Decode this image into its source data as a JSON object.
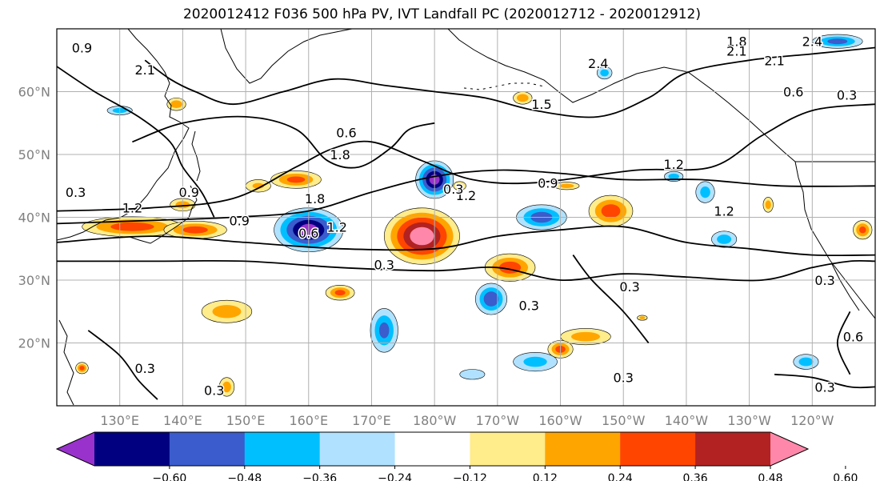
{
  "title": "2020012412 F036 500 hPa PV, IVT Landfall PC (2020012712 - 2020012912)",
  "map": {
    "lon_range": [
      120,
      250
    ],
    "lat_range": [
      10,
      70
    ],
    "lat_labels": [
      {
        "lat": 60,
        "label": "60°N"
      },
      {
        "lat": 50,
        "label": "50°N"
      },
      {
        "lat": 40,
        "label": "40°N"
      },
      {
        "lat": 30,
        "label": "30°N"
      },
      {
        "lat": 20,
        "label": "20°N"
      }
    ],
    "lon_labels": [
      {
        "lon": 130,
        "label": "130°E"
      },
      {
        "lon": 140,
        "label": "140°E"
      },
      {
        "lon": 150,
        "label": "150°E"
      },
      {
        "lon": 160,
        "label": "160°E"
      },
      {
        "lon": 170,
        "label": "170°E"
      },
      {
        "lon": 180,
        "label": "180°W"
      },
      {
        "lon": 190,
        "label": "170°W"
      },
      {
        "lon": 200,
        "label": "160°W"
      },
      {
        "lon": 210,
        "label": "150°W"
      },
      {
        "lon": 220,
        "label": "140°W"
      },
      {
        "lon": 230,
        "label": "130°W"
      },
      {
        "lon": 240,
        "label": "120°W"
      }
    ],
    "grid": true
  },
  "chart_data": {
    "type": "heatmap",
    "filled_field": "IVT Landfall PC",
    "contour_field": "500 hPa PV",
    "colorbar": {
      "orientation": "horizontal",
      "extend": "both",
      "ticks": [
        {
          "value": -0.6,
          "label": "−0.60"
        },
        {
          "value": -0.48,
          "label": "−0.48"
        },
        {
          "value": -0.36,
          "label": "−0.36"
        },
        {
          "value": -0.24,
          "label": "−0.24"
        },
        {
          "value": -0.12,
          "label": "−0.12"
        },
        {
          "value": 0.12,
          "label": "0.12"
        },
        {
          "value": 0.24,
          "label": "0.24"
        },
        {
          "value": 0.36,
          "label": "0.36"
        },
        {
          "value": 0.48,
          "label": "0.48"
        },
        {
          "value": 0.6,
          "label": "0.60"
        }
      ],
      "bins": [
        {
          "min": null,
          "max": -0.6,
          "color": "#9932cc"
        },
        {
          "min": -0.6,
          "max": -0.48,
          "color": "#000080"
        },
        {
          "min": -0.48,
          "max": -0.36,
          "color": "#3a5ccc"
        },
        {
          "min": -0.36,
          "max": -0.24,
          "color": "#00bfff"
        },
        {
          "min": -0.24,
          "max": -0.12,
          "color": "#b0e2ff"
        },
        {
          "min": -0.12,
          "max": 0.12,
          "color": "#ffffff"
        },
        {
          "min": 0.12,
          "max": 0.24,
          "color": "#ffec8b"
        },
        {
          "min": 0.24,
          "max": 0.36,
          "color": "#ffa500"
        },
        {
          "min": 0.36,
          "max": 0.48,
          "color": "#ff4500"
        },
        {
          "min": 0.48,
          "max": 0.6,
          "color": "#b22222"
        },
        {
          "min": 0.6,
          "max": null,
          "color": "#ff88aa"
        }
      ]
    },
    "anomalies": [
      {
        "lon": 132,
        "lat": 38.5,
        "rx": 8,
        "ry": 1.6,
        "value": 0.42
      },
      {
        "lon": 142,
        "lat": 38,
        "rx": 5,
        "ry": 1.4,
        "value": 0.4
      },
      {
        "lon": 160,
        "lat": 38,
        "rx": 5.5,
        "ry": 3.5,
        "value": -0.62
      },
      {
        "lon": 178,
        "lat": 37,
        "rx": 6,
        "ry": 4.5,
        "value": 0.66
      },
      {
        "lon": 180,
        "lat": 46,
        "rx": 3,
        "ry": 3,
        "value": -0.62
      },
      {
        "lon": 197,
        "lat": 40,
        "rx": 4,
        "ry": 2,
        "value": -0.42
      },
      {
        "lon": 208,
        "lat": 41,
        "rx": 3.5,
        "ry": 2.5,
        "value": 0.42
      },
      {
        "lon": 192,
        "lat": 32,
        "rx": 4,
        "ry": 2.2,
        "value": 0.42
      },
      {
        "lon": 189,
        "lat": 27,
        "rx": 2.5,
        "ry": 2.5,
        "value": -0.45
      },
      {
        "lon": 172,
        "lat": 22,
        "rx": 2.2,
        "ry": 3.5,
        "value": -0.38
      },
      {
        "lon": 147,
        "lat": 25,
        "rx": 4,
        "ry": 1.8,
        "value": 0.3
      },
      {
        "lon": 158,
        "lat": 46,
        "rx": 4,
        "ry": 1.4,
        "value": 0.38
      },
      {
        "lon": 196,
        "lat": 17,
        "rx": 3.5,
        "ry": 1.5,
        "value": -0.28
      },
      {
        "lon": 204,
        "lat": 21,
        "rx": 4,
        "ry": 1.3,
        "value": 0.3
      },
      {
        "lon": 200,
        "lat": 19,
        "rx": 2,
        "ry": 1.4,
        "value": 0.4
      },
      {
        "lon": 165,
        "lat": 28,
        "rx": 2.3,
        "ry": 1.2,
        "value": 0.38
      },
      {
        "lon": 226,
        "lat": 36.5,
        "rx": 2,
        "ry": 1.3,
        "value": -0.3
      },
      {
        "lon": 223,
        "lat": 44,
        "rx": 1.5,
        "ry": 1.7,
        "value": -0.28
      },
      {
        "lon": 186,
        "lat": 15,
        "rx": 2,
        "ry": 0.8,
        "value": -0.22
      },
      {
        "lon": 239,
        "lat": 17,
        "rx": 2,
        "ry": 1.2,
        "value": -0.3
      },
      {
        "lon": 130,
        "lat": 57,
        "rx": 2,
        "ry": 0.7,
        "value": -0.3
      },
      {
        "lon": 139,
        "lat": 58,
        "rx": 1.5,
        "ry": 1,
        "value": 0.33
      },
      {
        "lon": 194,
        "lat": 59,
        "rx": 1.5,
        "ry": 1,
        "value": 0.33
      },
      {
        "lon": 207,
        "lat": 63,
        "rx": 1.2,
        "ry": 1,
        "value": -0.3
      },
      {
        "lon": 244,
        "lat": 68,
        "rx": 4,
        "ry": 1.1,
        "value": -0.4
      },
      {
        "lon": 152,
        "lat": 45,
        "rx": 2,
        "ry": 1,
        "value": 0.25
      },
      {
        "lon": 140,
        "lat": 42,
        "rx": 2,
        "ry": 1,
        "value": 0.3
      },
      {
        "lon": 124,
        "lat": 16,
        "rx": 1,
        "ry": 0.9,
        "value": 0.4
      },
      {
        "lon": 147,
        "lat": 13,
        "rx": 1.2,
        "ry": 1.5,
        "value": 0.3
      },
      {
        "lon": 184,
        "lat": 45,
        "rx": 1,
        "ry": 0.7,
        "value": 0.3
      },
      {
        "lon": 201,
        "lat": 45,
        "rx": 2,
        "ry": 0.6,
        "value": 0.3
      },
      {
        "lon": 213,
        "lat": 24,
        "rx": 0.8,
        "ry": 0.4,
        "value": 0.3
      },
      {
        "lon": 233,
        "lat": 42,
        "rx": 0.8,
        "ry": 1.2,
        "value": 0.3
      },
      {
        "lon": 248,
        "lat": 38,
        "rx": 1.5,
        "ry": 1.5,
        "value": 0.38
      },
      {
        "lon": 218,
        "lat": 46.5,
        "rx": 1.5,
        "ry": 0.8,
        "value": -0.3
      }
    ],
    "pv_contours": [
      {
        "level": 0.3,
        "points": [
          [
            120,
            33
          ],
          [
            135,
            33
          ],
          [
            150,
            33
          ],
          [
            165,
            32
          ],
          [
            180,
            31.5
          ],
          [
            190,
            32
          ],
          [
            200,
            30
          ],
          [
            210,
            31
          ],
          [
            220,
            30.5
          ],
          [
            232,
            30
          ],
          [
            240,
            32
          ],
          [
            246,
            33
          ],
          [
            250,
            33
          ]
        ]
      },
      {
        "level": 0.6,
        "points": [
          [
            120,
            36
          ],
          [
            135,
            37
          ],
          [
            150,
            36
          ],
          [
            165,
            35
          ],
          [
            180,
            35
          ],
          [
            190,
            37
          ],
          [
            200,
            38
          ],
          [
            210,
            38.5
          ],
          [
            220,
            36
          ],
          [
            230,
            35
          ],
          [
            240,
            34
          ],
          [
            250,
            34
          ]
        ]
      },
      {
        "level": 0.9,
        "points": [
          [
            120,
            39
          ],
          [
            135,
            39.5
          ],
          [
            148,
            40
          ],
          [
            160,
            41
          ],
          [
            170,
            44
          ],
          [
            180,
            46.5
          ],
          [
            190,
            47.5
          ],
          [
            200,
            47
          ],
          [
            210,
            46
          ],
          [
            222,
            46
          ],
          [
            235,
            45
          ],
          [
            250,
            45
          ]
        ]
      },
      {
        "level": 1.2,
        "points": [
          [
            120,
            41
          ],
          [
            135,
            41.5
          ],
          [
            148,
            43
          ],
          [
            158,
            48
          ],
          [
            164,
            51
          ],
          [
            170,
            52
          ],
          [
            178,
            49
          ],
          [
            186,
            46
          ],
          [
            196,
            45.5
          ],
          [
            212,
            47.5
          ],
          [
            224,
            48
          ],
          [
            232,
            53
          ],
          [
            240,
            57
          ],
          [
            250,
            58
          ]
        ]
      },
      {
        "level": 1.8,
        "points": [
          [
            132,
            52
          ],
          [
            140,
            55
          ],
          [
            150,
            56
          ],
          [
            158,
            54
          ],
          [
            163,
            49
          ],
          [
            168,
            48
          ],
          [
            173,
            51
          ],
          [
            176,
            54
          ],
          [
            180,
            55
          ]
        ]
      },
      {
        "level": 2.1,
        "points": [
          [
            134,
            65
          ],
          [
            138,
            62
          ],
          [
            142,
            60
          ],
          [
            148,
            58
          ],
          [
            156,
            60
          ],
          [
            164,
            62
          ],
          [
            172,
            61
          ],
          [
            180,
            60
          ],
          [
            188,
            59
          ],
          [
            196,
            57
          ],
          [
            206,
            56
          ],
          [
            214,
            59
          ],
          [
            220,
            63
          ],
          [
            230,
            65
          ],
          [
            240,
            66
          ],
          [
            250,
            67
          ]
        ]
      },
      {
        "level": 0.6,
        "points": [
          [
            120,
            64
          ],
          [
            126,
            60
          ],
          [
            133,
            56
          ],
          [
            138,
            52
          ],
          [
            140,
            48
          ],
          [
            143,
            44
          ],
          [
            145,
            40
          ]
        ]
      },
      {
        "level": 0.3,
        "points": [
          [
            125,
            22
          ],
          [
            130,
            18
          ],
          [
            133,
            14
          ],
          [
            136,
            11
          ]
        ]
      },
      {
        "level": 0.3,
        "points": [
          [
            234,
            15
          ],
          [
            240,
            14.5
          ],
          [
            246,
            13
          ],
          [
            250,
            13
          ]
        ]
      },
      {
        "level": 0.6,
        "points": [
          [
            246,
            25
          ],
          [
            244,
            20
          ],
          [
            246,
            15
          ]
        ]
      },
      {
        "level": 0.3,
        "points": [
          [
            202,
            34
          ],
          [
            205,
            30
          ],
          [
            210,
            25
          ],
          [
            214,
            20
          ]
        ]
      }
    ],
    "pv_contour_labels": [
      {
        "lon": 124,
        "lat": 67,
        "text": "0.9"
      },
      {
        "lon": 134,
        "lat": 63.5,
        "text": "2.1"
      },
      {
        "lon": 166,
        "lat": 53.5,
        "text": "0.6"
      },
      {
        "lon": 165,
        "lat": 50,
        "text": "1.8"
      },
      {
        "lon": 161,
        "lat": 43,
        "text": "1.8"
      },
      {
        "lon": 185,
        "lat": 43.5,
        "text": "1.2"
      },
      {
        "lon": 198,
        "lat": 45.5,
        "text": "0.9"
      },
      {
        "lon": 149,
        "lat": 39.5,
        "text": "0.9"
      },
      {
        "lon": 164.5,
        "lat": 38.5,
        "text": "1.2"
      },
      {
        "lon": 132,
        "lat": 41.5,
        "text": "1.2"
      },
      {
        "lon": 141,
        "lat": 44,
        "text": "0.9"
      },
      {
        "lon": 123,
        "lat": 44,
        "text": "0.3"
      },
      {
        "lon": 160,
        "lat": 37.5,
        "text": "0.6"
      },
      {
        "lon": 183,
        "lat": 44.5,
        "text": "0.3"
      },
      {
        "lon": 172,
        "lat": 32.5,
        "text": "0.3"
      },
      {
        "lon": 195,
        "lat": 26,
        "text": "0.3"
      },
      {
        "lon": 211,
        "lat": 29,
        "text": "0.3"
      },
      {
        "lon": 210,
        "lat": 14.5,
        "text": "0.3"
      },
      {
        "lon": 145,
        "lat": 12.5,
        "text": "0.3"
      },
      {
        "lon": 134,
        "lat": 16,
        "text": "0.3"
      },
      {
        "lon": 237,
        "lat": 60,
        "text": "0.6"
      },
      {
        "lon": 245.5,
        "lat": 59.5,
        "text": "0.3"
      },
      {
        "lon": 234,
        "lat": 65,
        "text": "2.1"
      },
      {
        "lon": 218,
        "lat": 48.5,
        "text": "1.2"
      },
      {
        "lon": 226,
        "lat": 41,
        "text": "1.2"
      },
      {
        "lon": 242,
        "lat": 30,
        "text": "0.3"
      },
      {
        "lon": 242,
        "lat": 13,
        "text": "0.3"
      },
      {
        "lon": 246.5,
        "lat": 21,
        "text": "0.6"
      },
      {
        "lon": 206,
        "lat": 64.5,
        "text": "2.4"
      },
      {
        "lon": 228,
        "lat": 68,
        "text": "1.8"
      },
      {
        "lon": 228,
        "lat": 66.5,
        "text": "2.1"
      },
      {
        "lon": 240,
        "lat": 68,
        "text": "2.4"
      },
      {
        "lon": 197,
        "lat": 58,
        "text": "1.5"
      }
    ]
  }
}
